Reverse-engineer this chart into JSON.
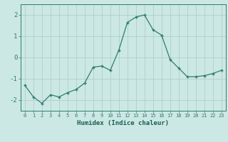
{
  "x": [
    0,
    1,
    2,
    3,
    4,
    5,
    6,
    7,
    8,
    9,
    10,
    11,
    12,
    13,
    14,
    15,
    16,
    17,
    18,
    19,
    20,
    21,
    22,
    23
  ],
  "y": [
    -1.3,
    -1.85,
    -2.15,
    -1.75,
    -1.85,
    -1.65,
    -1.5,
    -1.2,
    -0.45,
    -0.4,
    -0.6,
    0.35,
    1.65,
    1.9,
    2.0,
    1.3,
    1.05,
    -0.1,
    -0.5,
    -0.9,
    -0.9,
    -0.85,
    -0.75,
    -0.6
  ],
  "line_color": "#2d7d6e",
  "bg_color": "#cce8e4",
  "grid_color": "#b0ceca",
  "xlabel": "Humidex (Indice chaleur)",
  "xlim": [
    -0.5,
    23.5
  ],
  "ylim": [
    -2.5,
    2.5
  ],
  "yticks": [
    -2,
    -1,
    0,
    1,
    2
  ],
  "xticks": [
    0,
    1,
    2,
    3,
    4,
    5,
    6,
    7,
    8,
    9,
    10,
    11,
    12,
    13,
    14,
    15,
    16,
    17,
    18,
    19,
    20,
    21,
    22,
    23
  ],
  "tick_color": "#2d7d6e",
  "label_color": "#1a5c52",
  "font_family": "monospace",
  "xlabel_fontsize": 6.5,
  "ytick_fontsize": 6.5,
  "xtick_fontsize": 5.0
}
